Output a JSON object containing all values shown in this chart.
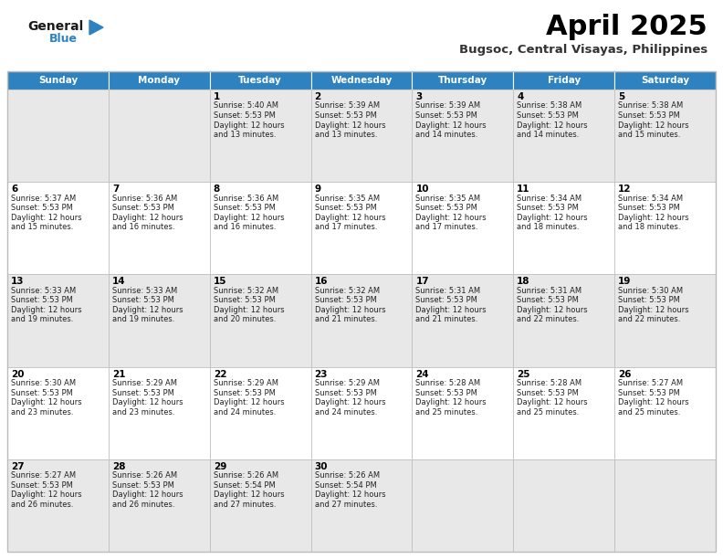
{
  "title": "April 2025",
  "subtitle": "Bugsoc, Central Visayas, Philippines",
  "header_bg": "#2E82C0",
  "header_text_color": "#FFFFFF",
  "alt_row_bg": "#E8E8E8",
  "white_bg": "#FFFFFF",
  "border_color": "#BBBBBB",
  "days_of_week": [
    "Sunday",
    "Monday",
    "Tuesday",
    "Wednesday",
    "Thursday",
    "Friday",
    "Saturday"
  ],
  "calendar_data": [
    [
      {
        "day": "",
        "sunrise": "",
        "sunset": "",
        "daylight": ""
      },
      {
        "day": "",
        "sunrise": "",
        "sunset": "",
        "daylight": ""
      },
      {
        "day": "1",
        "sunrise": "5:40 AM",
        "sunset": "5:53 PM",
        "daylight": "12 hours and 13 minutes."
      },
      {
        "day": "2",
        "sunrise": "5:39 AM",
        "sunset": "5:53 PM",
        "daylight": "12 hours and 13 minutes."
      },
      {
        "day": "3",
        "sunrise": "5:39 AM",
        "sunset": "5:53 PM",
        "daylight": "12 hours and 14 minutes."
      },
      {
        "day": "4",
        "sunrise": "5:38 AM",
        "sunset": "5:53 PM",
        "daylight": "12 hours and 14 minutes."
      },
      {
        "day": "5",
        "sunrise": "5:38 AM",
        "sunset": "5:53 PM",
        "daylight": "12 hours and 15 minutes."
      }
    ],
    [
      {
        "day": "6",
        "sunrise": "5:37 AM",
        "sunset": "5:53 PM",
        "daylight": "12 hours and 15 minutes."
      },
      {
        "day": "7",
        "sunrise": "5:36 AM",
        "sunset": "5:53 PM",
        "daylight": "12 hours and 16 minutes."
      },
      {
        "day": "8",
        "sunrise": "5:36 AM",
        "sunset": "5:53 PM",
        "daylight": "12 hours and 16 minutes."
      },
      {
        "day": "9",
        "sunrise": "5:35 AM",
        "sunset": "5:53 PM",
        "daylight": "12 hours and 17 minutes."
      },
      {
        "day": "10",
        "sunrise": "5:35 AM",
        "sunset": "5:53 PM",
        "daylight": "12 hours and 17 minutes."
      },
      {
        "day": "11",
        "sunrise": "5:34 AM",
        "sunset": "5:53 PM",
        "daylight": "12 hours and 18 minutes."
      },
      {
        "day": "12",
        "sunrise": "5:34 AM",
        "sunset": "5:53 PM",
        "daylight": "12 hours and 18 minutes."
      }
    ],
    [
      {
        "day": "13",
        "sunrise": "5:33 AM",
        "sunset": "5:53 PM",
        "daylight": "12 hours and 19 minutes."
      },
      {
        "day": "14",
        "sunrise": "5:33 AM",
        "sunset": "5:53 PM",
        "daylight": "12 hours and 19 minutes."
      },
      {
        "day": "15",
        "sunrise": "5:32 AM",
        "sunset": "5:53 PM",
        "daylight": "12 hours and 20 minutes."
      },
      {
        "day": "16",
        "sunrise": "5:32 AM",
        "sunset": "5:53 PM",
        "daylight": "12 hours and 21 minutes."
      },
      {
        "day": "17",
        "sunrise": "5:31 AM",
        "sunset": "5:53 PM",
        "daylight": "12 hours and 21 minutes."
      },
      {
        "day": "18",
        "sunrise": "5:31 AM",
        "sunset": "5:53 PM",
        "daylight": "12 hours and 22 minutes."
      },
      {
        "day": "19",
        "sunrise": "5:30 AM",
        "sunset": "5:53 PM",
        "daylight": "12 hours and 22 minutes."
      }
    ],
    [
      {
        "day": "20",
        "sunrise": "5:30 AM",
        "sunset": "5:53 PM",
        "daylight": "12 hours and 23 minutes."
      },
      {
        "day": "21",
        "sunrise": "5:29 AM",
        "sunset": "5:53 PM",
        "daylight": "12 hours and 23 minutes."
      },
      {
        "day": "22",
        "sunrise": "5:29 AM",
        "sunset": "5:53 PM",
        "daylight": "12 hours and 24 minutes."
      },
      {
        "day": "23",
        "sunrise": "5:29 AM",
        "sunset": "5:53 PM",
        "daylight": "12 hours and 24 minutes."
      },
      {
        "day": "24",
        "sunrise": "5:28 AM",
        "sunset": "5:53 PM",
        "daylight": "12 hours and 25 minutes."
      },
      {
        "day": "25",
        "sunrise": "5:28 AM",
        "sunset": "5:53 PM",
        "daylight": "12 hours and 25 minutes."
      },
      {
        "day": "26",
        "sunrise": "5:27 AM",
        "sunset": "5:53 PM",
        "daylight": "12 hours and 25 minutes."
      }
    ],
    [
      {
        "day": "27",
        "sunrise": "5:27 AM",
        "sunset": "5:53 PM",
        "daylight": "12 hours and 26 minutes."
      },
      {
        "day": "28",
        "sunrise": "5:26 AM",
        "sunset": "5:53 PM",
        "daylight": "12 hours and 26 minutes."
      },
      {
        "day": "29",
        "sunrise": "5:26 AM",
        "sunset": "5:54 PM",
        "daylight": "12 hours and 27 minutes."
      },
      {
        "day": "30",
        "sunrise": "5:26 AM",
        "sunset": "5:54 PM",
        "daylight": "12 hours and 27 minutes."
      },
      {
        "day": "",
        "sunrise": "",
        "sunset": "",
        "daylight": ""
      },
      {
        "day": "",
        "sunrise": "",
        "sunset": "",
        "daylight": ""
      },
      {
        "day": "",
        "sunrise": "",
        "sunset": "",
        "daylight": ""
      }
    ]
  ],
  "logo_general_color": "#1A1A1A",
  "logo_blue_color": "#2E82C0",
  "logo_triangle_color": "#2E82C0"
}
